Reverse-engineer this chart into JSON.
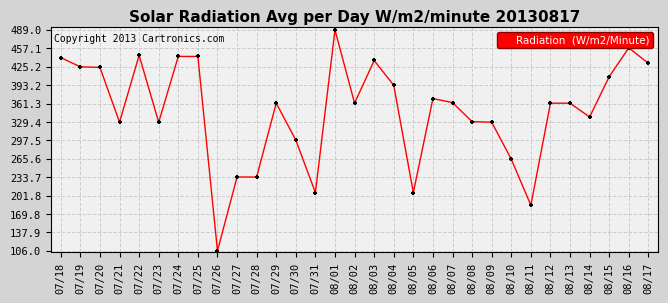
{
  "title": "Solar Radiation Avg per Day W/m2/minute 20130817",
  "copyright": "Copyright 2013 Cartronics.com",
  "legend_label": "Radiation  (W/m2/Minute)",
  "dates": [
    "07/18",
    "07/19",
    "07/20",
    "07/21",
    "07/22",
    "07/23",
    "07/24",
    "07/25",
    "07/26",
    "07/27",
    "07/28",
    "07/29",
    "07/30",
    "07/31",
    "08/01",
    "08/02",
    "08/03",
    "08/04",
    "08/05",
    "08/06",
    "08/07",
    "08/08",
    "08/09",
    "08/10",
    "08/11",
    "08/12",
    "08/13",
    "08/14",
    "08/15",
    "08/16",
    "08/17"
  ],
  "values": [
    441,
    425,
    424,
    329,
    445,
    329,
    443,
    443,
    106,
    234,
    234,
    362,
    298,
    207,
    489,
    362,
    436,
    393,
    207,
    370,
    363,
    330,
    329,
    265,
    185,
    362,
    362,
    338,
    408,
    458,
    431
  ],
  "line_color": "red",
  "marker_color": "black",
  "outer_bg": "#d4d4d4",
  "plot_bg": "#f0f0f0",
  "grid_color": "#cccccc",
  "y_min": 106.0,
  "y_max": 489.0,
  "y_ticks": [
    106.0,
    137.9,
    169.8,
    201.8,
    233.7,
    265.6,
    297.5,
    329.4,
    361.3,
    393.2,
    425.2,
    457.1,
    489.0
  ],
  "title_fontsize": 11,
  "copyright_fontsize": 7,
  "legend_fontsize": 7.5,
  "tick_fontsize": 7.5
}
